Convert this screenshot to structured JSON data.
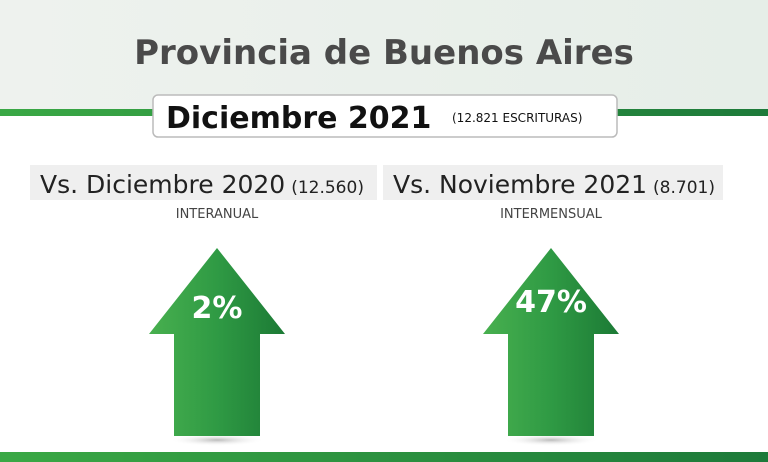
{
  "header": {
    "title": "Provincia de Buenos Aires",
    "period": "Diciembre 2021",
    "total": "(12.821 ESCRITURAS)"
  },
  "comparisons": [
    {
      "label": "Vs. Diciembre 2020",
      "count": "(12.560)",
      "kind": "INTERANUAL",
      "change": "2%"
    },
    {
      "label": "Vs. Noviembre 2021",
      "count": "(8.701)",
      "kind": "INTERMENSUAL",
      "change": "47%"
    }
  ]
}
